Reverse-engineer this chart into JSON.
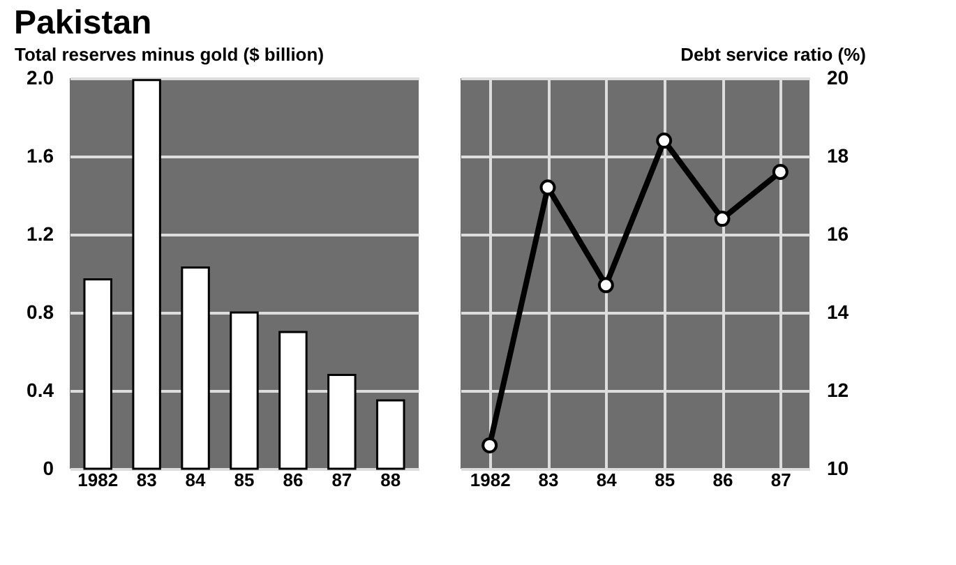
{
  "chart_data": [
    {
      "type": "bar",
      "title": "Pakistan",
      "ylabel": "Total reserves minus gold ($ billion)",
      "categories": [
        "1982",
        "83",
        "84",
        "85",
        "86",
        "87",
        "88"
      ],
      "series": [
        {
          "color": "#ffffff",
          "values": [
            0.97,
            1.99,
            1.03,
            0.8,
            0.7,
            0.48,
            0.35
          ]
        }
      ],
      "ylim": [
        0,
        2.0
      ],
      "yticks": [
        0,
        0.4,
        0.8,
        1.2,
        1.6,
        {
          "value": 2.0,
          "label": "2.0"
        }
      ],
      "grid": "y"
    },
    {
      "type": "line",
      "ylabel": "Debt service ratio (%)",
      "categories": [
        "1982",
        "83",
        "84",
        "85",
        "86",
        "87"
      ],
      "series": [
        {
          "color": "#000000",
          "values": [
            10.6,
            17.2,
            14.7,
            18.4,
            16.4,
            17.6
          ]
        }
      ],
      "ylim": [
        10,
        20
      ],
      "yticks": [
        10,
        12,
        14,
        16,
        18,
        20
      ],
      "grid": true,
      "marker": "circle",
      "line_style": "solid"
    }
  ]
}
